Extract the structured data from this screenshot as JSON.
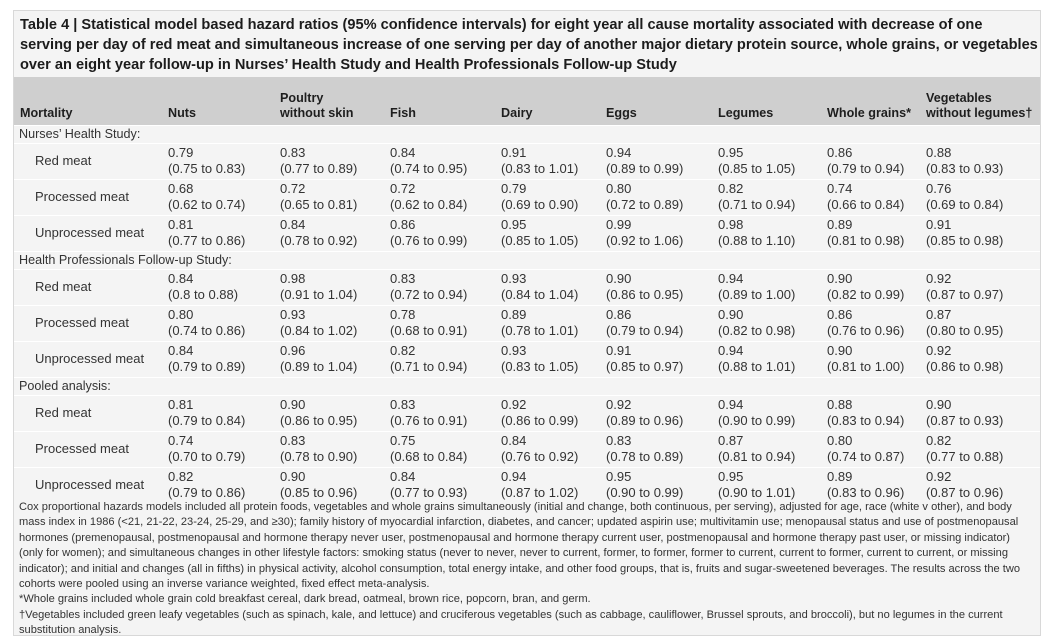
{
  "title": "Table 4 | Statistical model based hazard ratios (95% confidence intervals) for eight year all cause mortality associated with decrease of one serving per day of red meat and simultaneous increase of one serving per day of another major dietary protein source, whole grains, or vegetables over an eight year follow-up in Nurses’ Health Study and Health Professionals Follow-up Study",
  "columns": [
    "Mortality",
    "Nuts",
    "Poultry without skin",
    "Fish",
    "Dairy",
    "Eggs",
    "Legumes",
    "Whole grains*",
    "Vegetables without legumes†"
  ],
  "header_lines": {
    "poultry_1": "Poultry",
    "poultry_2": "without skin",
    "veg_1": "Vegetables",
    "veg_2": "without legumes†"
  },
  "sections": [
    {
      "name": "Nurses’ Health Study:",
      "rows": [
        {
          "label": "Red meat",
          "values": [
            [
              "0.79",
              "(0.75 to 0.83)"
            ],
            [
              "0.83",
              "(0.77 to 0.89)"
            ],
            [
              "0.84",
              "(0.74 to 0.95)"
            ],
            [
              "0.91",
              "(0.83 to 1.01)"
            ],
            [
              "0.94",
              "(0.89 to 0.99)"
            ],
            [
              "0.95",
              "(0.85 to 1.05)"
            ],
            [
              "0.86",
              "(0.79 to 0.94)"
            ],
            [
              "0.88",
              "(0.83 to 0.93)"
            ]
          ]
        },
        {
          "label": "Processed meat",
          "values": [
            [
              "0.68",
              "(0.62 to 0.74)"
            ],
            [
              "0.72",
              "(0.65 to 0.81)"
            ],
            [
              "0.72",
              "(0.62 to 0.84)"
            ],
            [
              "0.79",
              "(0.69 to 0.90)"
            ],
            [
              "0.80",
              "(0.72 to 0.89)"
            ],
            [
              "0.82",
              "(0.71 to 0.94)"
            ],
            [
              "0.74",
              "(0.66 to 0.84)"
            ],
            [
              "0.76",
              "(0.69 to 0.84)"
            ]
          ]
        },
        {
          "label": "Unprocessed meat",
          "values": [
            [
              "0.81",
              "(0.77 to 0.86)"
            ],
            [
              "0.84",
              "(0.78 to 0.92)"
            ],
            [
              "0.86",
              "(0.76 to 0.99)"
            ],
            [
              "0.95",
              "(0.85 to 1.05)"
            ],
            [
              "0.99",
              "(0.92 to 1.06)"
            ],
            [
              "0.98",
              "(0.88 to 1.10)"
            ],
            [
              "0.89",
              "(0.81 to 0.98)"
            ],
            [
              "0.91",
              "(0.85 to 0.98)"
            ]
          ]
        }
      ]
    },
    {
      "name": "Health Professionals Follow-up Study:",
      "rows": [
        {
          "label": "Red meat",
          "values": [
            [
              "0.84",
              "(0.8 to 0.88)"
            ],
            [
              "0.98",
              "(0.91 to 1.04)"
            ],
            [
              "0.83",
              "(0.72 to 0.94)"
            ],
            [
              "0.93",
              "(0.84 to 1.04)"
            ],
            [
              "0.90",
              "(0.86 to 0.95)"
            ],
            [
              "0.94",
              "(0.89 to 1.00)"
            ],
            [
              "0.90",
              "(0.82 to 0.99)"
            ],
            [
              "0.92",
              "(0.87 to 0.97)"
            ]
          ]
        },
        {
          "label": "Processed meat",
          "values": [
            [
              "0.80",
              "(0.74 to 0.86)"
            ],
            [
              "0.93",
              "(0.84 to 1.02)"
            ],
            [
              "0.78",
              "(0.68 to 0.91)"
            ],
            [
              "0.89",
              "(0.78 to 1.01)"
            ],
            [
              "0.86",
              "(0.79 to 0.94)"
            ],
            [
              "0.90",
              "(0.82 to 0.98)"
            ],
            [
              "0.86",
              "(0.76 to 0.96)"
            ],
            [
              "0.87",
              "(0.80 to 0.95)"
            ]
          ]
        },
        {
          "label": "Unprocessed meat",
          "values": [
            [
              "0.84",
              "(0.79 to 0.89)"
            ],
            [
              "0.96",
              "(0.89 to 1.04)"
            ],
            [
              "0.82",
              "(0.71 to 0.94)"
            ],
            [
              "0.93",
              "(0.83 to 1.05)"
            ],
            [
              "0.91",
              "(0.85 to 0.97)"
            ],
            [
              "0.94",
              "(0.88 to 1.01)"
            ],
            [
              "0.90",
              "(0.81 to 1.00)"
            ],
            [
              "0.92",
              "(0.86 to 0.98)"
            ]
          ]
        }
      ]
    },
    {
      "name": "Pooled analysis:",
      "rows": [
        {
          "label": "Red meat",
          "values": [
            [
              "0.81",
              "(0.79 to 0.84)"
            ],
            [
              "0.90",
              "(0.86 to 0.95)"
            ],
            [
              "0.83",
              "(0.76 to 0.91)"
            ],
            [
              "0.92",
              "(0.86 to 0.99)"
            ],
            [
              "0.92",
              "(0.89 to 0.96)"
            ],
            [
              "0.94",
              "(0.90 to 0.99)"
            ],
            [
              "0.88",
              "(0.83 to 0.94)"
            ],
            [
              "0.90",
              "(0.87 to 0.93)"
            ]
          ]
        },
        {
          "label": "Processed meat",
          "values": [
            [
              "0.74",
              "(0.70 to 0.79)"
            ],
            [
              "0.83",
              "(0.78 to 0.90)"
            ],
            [
              "0.75",
              "(0.68 to 0.84)"
            ],
            [
              "0.84",
              "(0.76 to 0.92)"
            ],
            [
              "0.83",
              "(0.78 to 0.89)"
            ],
            [
              "0.87",
              "(0.81 to 0.94)"
            ],
            [
              "0.80",
              "(0.74 to 0.87)"
            ],
            [
              "0.82",
              "(0.77 to 0.88)"
            ]
          ]
        },
        {
          "label": "Unprocessed meat",
          "values": [
            [
              "0.82",
              "(0.79 to 0.86)"
            ],
            [
              "0.90",
              "(0.85 to 0.96)"
            ],
            [
              "0.84",
              "(0.77 to 0.93)"
            ],
            [
              "0.94",
              "(0.87 to 1.02)"
            ],
            [
              "0.95",
              "(0.90 to 0.99)"
            ],
            [
              "0.95",
              "(0.90 to 1.01)"
            ],
            [
              "0.89",
              "(0.83 to 0.96)"
            ],
            [
              "0.92",
              "(0.87 to 0.96)"
            ]
          ]
        }
      ]
    }
  ],
  "footnotes": [
    "Cox proportional hazards models included all protein foods, vegetables and whole grains simultaneously (initial and change, both continuous, per serving), adjusted for age, race (white v other), and body mass index in 1986 (<21, 21-22, 23-24, 25-29, and ≥30); family history of myocardial infarction, diabetes, and cancer; updated aspirin use; multivitamin use; menopausal status and use of postmenopausal hormones (premenopausal, postmenopausal and hormone therapy never user, postmenopausal and hormone therapy current user, postmenopausal and hormone therapy past user, or missing indicator) (only for women); and simultaneous changes in other lifestyle factors: smoking status (never to never, never to current, former, to former, former to current, current to former, current to current, or missing indicator); and initial and changes (all in fifths) in physical activity, alcohol consumption, total energy intake, and other food groups, that is, fruits and sugar-sweetened beverages. The results across the two cohorts were pooled using an inverse variance weighted, fixed effect meta-analysis.",
    "*Whole grains included whole grain cold breakfast cereal, dark bread, oatmeal, brown rice, popcorn, bran, and germ.",
    "†Vegetables included green leafy vegetables (such as spinach, kale, and lettuce) and cruciferous vegetables (such as cabbage, cauliflower, Brussel sprouts, and broccoli), but no legumes in the current substitution analysis."
  ]
}
